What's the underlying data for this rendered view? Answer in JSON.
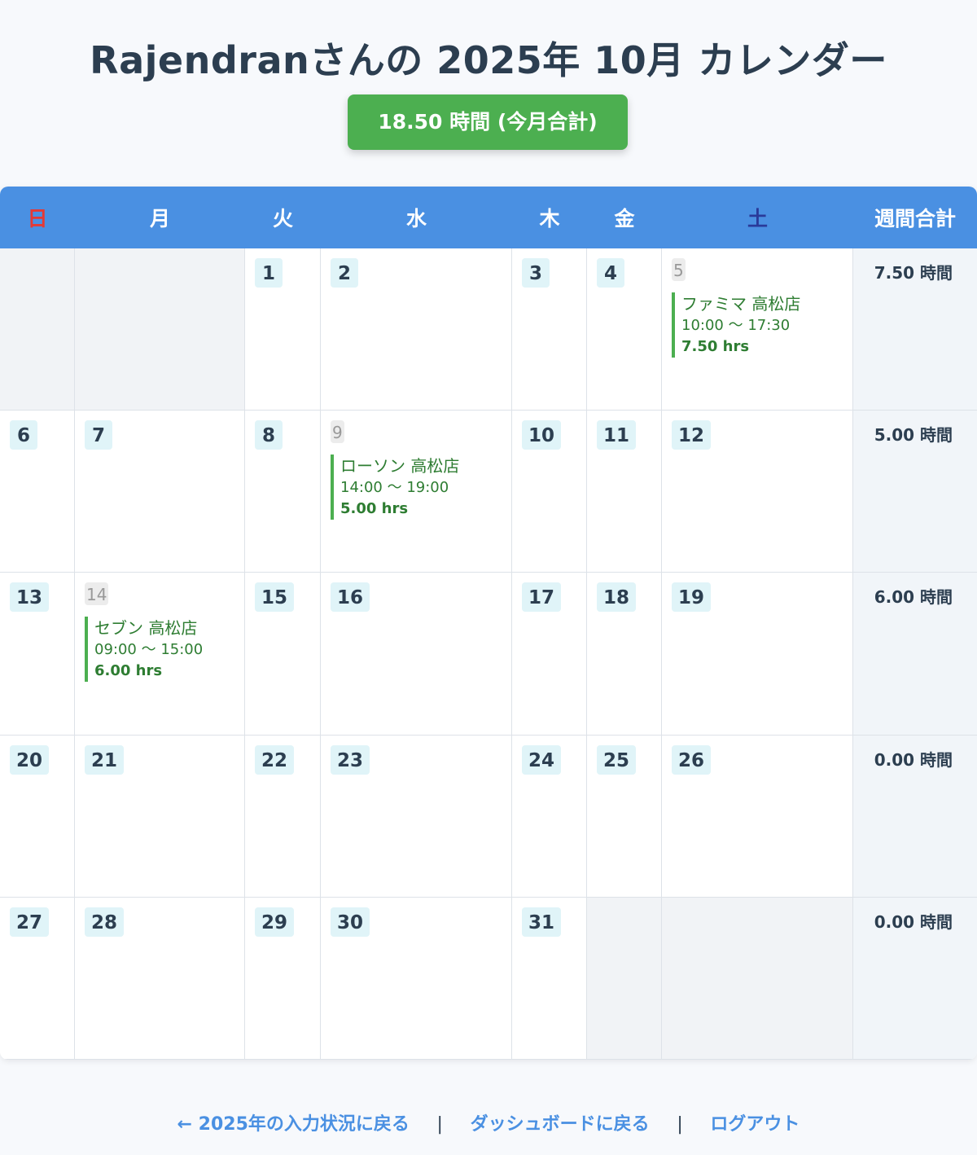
{
  "title": "Rajendranさんの 2025年 10月 カレンダー",
  "total_badge": "18.50 時間 (今月合計)",
  "weekdays": [
    "日",
    "月",
    "火",
    "水",
    "木",
    "金",
    "土"
  ],
  "week_total_header": "週間合計",
  "weeks": [
    {
      "days": [
        {
          "num": "",
          "empty": true
        },
        {
          "num": "",
          "empty": true
        },
        {
          "num": "1"
        },
        {
          "num": "2"
        },
        {
          "num": "3"
        },
        {
          "num": "4"
        },
        {
          "num": "5",
          "shift": {
            "store": "ファミマ 高松店",
            "time": "10:00 〜 17:30",
            "hours": "7.50 hrs"
          }
        }
      ],
      "total": "7.50 時間"
    },
    {
      "days": [
        {
          "num": "6"
        },
        {
          "num": "7"
        },
        {
          "num": "8"
        },
        {
          "num": "9",
          "shift": {
            "store": "ローソン 高松店",
            "time": "14:00 〜 19:00",
            "hours": "5.00 hrs"
          }
        },
        {
          "num": "10"
        },
        {
          "num": "11"
        },
        {
          "num": "12"
        }
      ],
      "total": "5.00 時間"
    },
    {
      "days": [
        {
          "num": "13"
        },
        {
          "num": "14",
          "shift": {
            "store": "セブン 高松店",
            "time": "09:00 〜 15:00",
            "hours": "6.00 hrs"
          }
        },
        {
          "num": "15"
        },
        {
          "num": "16"
        },
        {
          "num": "17"
        },
        {
          "num": "18"
        },
        {
          "num": "19"
        }
      ],
      "total": "6.00 時間"
    },
    {
      "days": [
        {
          "num": "20"
        },
        {
          "num": "21"
        },
        {
          "num": "22"
        },
        {
          "num": "23"
        },
        {
          "num": "24"
        },
        {
          "num": "25"
        },
        {
          "num": "26"
        }
      ],
      "total": "0.00 時間"
    },
    {
      "days": [
        {
          "num": "27"
        },
        {
          "num": "28"
        },
        {
          "num": "29"
        },
        {
          "num": "30"
        },
        {
          "num": "31"
        },
        {
          "num": "",
          "empty": true
        },
        {
          "num": "",
          "empty": true
        }
      ],
      "total": "0.00 時間"
    }
  ],
  "footer": {
    "back_year": "← 2025年の入力状況に戻る",
    "separator": "|",
    "dashboard": "ダッシュボードに戻る",
    "logout": "ログアウト"
  },
  "colors": {
    "header_bg": "#4a90e2",
    "sunday": "#e53935",
    "saturday": "#2a3a9a",
    "shift_green": "#4caf50",
    "badge_green": "#4caf50"
  }
}
